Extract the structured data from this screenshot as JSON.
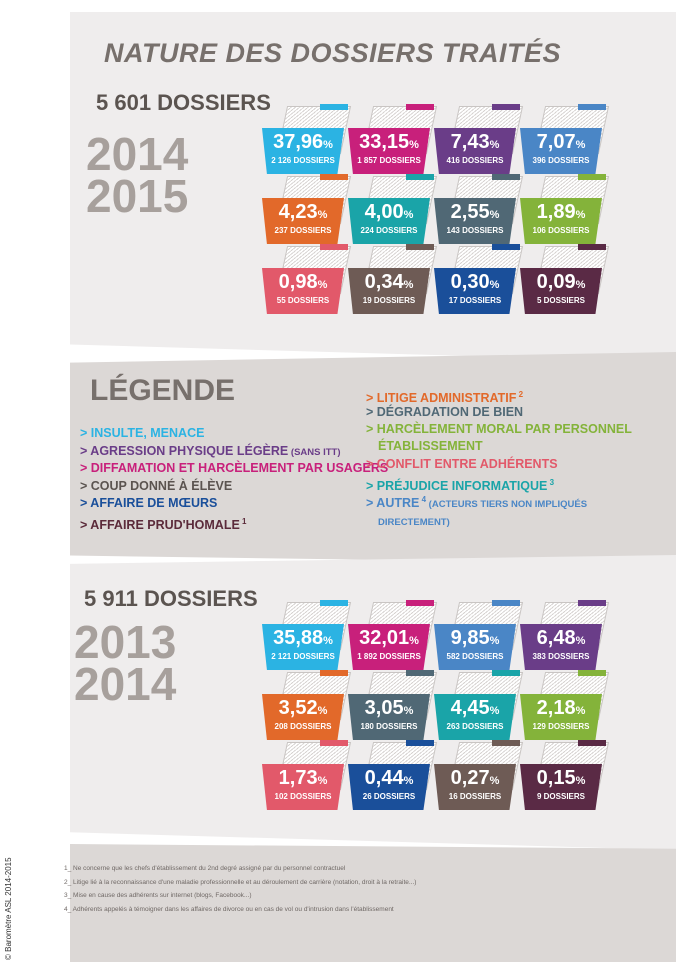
{
  "title": "NATURE DES DOSSIERS TRAITÉS",
  "section1": {
    "count": "5 601 DOSSIERS",
    "year_a": "2014",
    "year_b": "2015",
    "folders": [
      {
        "pct": "37,96",
        "num": "2 126 DOSSIERS",
        "color": "#2bb3e3"
      },
      {
        "pct": "33,15",
        "num": "1 857 DOSSIERS",
        "color": "#c8207b"
      },
      {
        "pct": "7,43",
        "num": "416 DOSSIERS",
        "color": "#6a3d88"
      },
      {
        "pct": "7,07",
        "num": "396 DOSSIERS",
        "color": "#4a86c6"
      },
      {
        "pct": "4,23",
        "num": "237 DOSSIERS",
        "color": "#e2692a"
      },
      {
        "pct": "4,00",
        "num": "224 DOSSIERS",
        "color": "#1aa4a8"
      },
      {
        "pct": "2,55",
        "num": "143 DOSSIERS",
        "color": "#506875"
      },
      {
        "pct": "1,89",
        "num": "106 DOSSIERS",
        "color": "#84b33a"
      },
      {
        "pct": "0,98",
        "num": "55 DOSSIERS",
        "color": "#e2596a"
      },
      {
        "pct": "0,34",
        "num": "19 DOSSIERS",
        "color": "#6e5b55"
      },
      {
        "pct": "0,30",
        "num": "17 DOSSIERS",
        "color": "#1a4f9a"
      },
      {
        "pct": "0,09",
        "num": "5 DOSSIERS",
        "color": "#5a2a45"
      }
    ]
  },
  "legend": {
    "title": "LÉGENDE",
    "left": [
      {
        "text": "> INSULTE, MENACE",
        "color": "#2bb3e3"
      },
      {
        "text": "> AGRESSION PHYSIQUE LÉGÈRE",
        "extra": " (SANS ITT)",
        "color": "#6a3d88"
      },
      {
        "text": "> DIFFAMATION ET HARCÈLEMENT PAR USAGERS",
        "color": "#c8207b"
      },
      {
        "text": "> COUP DONNÉ À ÉLÈVE",
        "color": "#5b5450"
      },
      {
        "text": "> AFFAIRE DE MŒURS",
        "color": "#1a4f9a"
      },
      {
        "text": "> AFFAIRE PRUD'HOMALE",
        "sup": "1",
        "color": "#5b2a3a"
      }
    ],
    "right": [
      {
        "text": "> LITIGE ADMINISTRATIF",
        "sup": "2",
        "color": "#e2692a"
      },
      {
        "text": "> DÉGRADATION DE BIEN",
        "color": "#506875"
      },
      {
        "text": "> HARCÈLEMENT MORAL PAR  PERSONNEL",
        "line2": "ÉTABLISSEMENT",
        "color": "#84b33a"
      },
      {
        "text": "> CONFLIT ENTRE ADHÉRENTS",
        "color": "#e2596a"
      },
      {
        "text": "> PRÉJUDICE INFORMATIQUE",
        "sup": "3",
        "color": "#1aa4a8"
      },
      {
        "text": "> AUTRE",
        "sup": "4",
        "extra": " (ACTEURS TIERS NON IMPLIQUÉS",
        "line2": "DIRECTEMENT)",
        "color": "#4a86c6"
      }
    ]
  },
  "section2": {
    "count": "5 911 DOSSIERS",
    "year_a": "2013",
    "year_b": "2014",
    "folders": [
      {
        "pct": "35,88",
        "num": "2 121 DOSSIERS",
        "color": "#2bb3e3"
      },
      {
        "pct": "32,01",
        "num": "1 892 DOSSIERS",
        "color": "#c8207b"
      },
      {
        "pct": "9,85",
        "num": "582 DOSSIERS",
        "color": "#4a86c6"
      },
      {
        "pct": "6,48",
        "num": "383 DOSSIERS",
        "color": "#6a3d88"
      },
      {
        "pct": "3,52",
        "num": "208 DOSSIERS",
        "color": "#e2692a"
      },
      {
        "pct": "3,05",
        "num": "180 DOSSIERS",
        "color": "#506875"
      },
      {
        "pct": "4,45",
        "num": "263 DOSSIERS",
        "color": "#1aa4a8"
      },
      {
        "pct": "2,18",
        "num": "129 DOSSIERS",
        "color": "#84b33a"
      },
      {
        "pct": "1,73",
        "num": "102 DOSSIERS",
        "color": "#e2596a"
      },
      {
        "pct": "0,44",
        "num": "26 DOSSIERS",
        "color": "#1a4f9a"
      },
      {
        "pct": "0,27",
        "num": "16 DOSSIERS",
        "color": "#6e5b55"
      },
      {
        "pct": "0,15",
        "num": "9 DOSSIERS",
        "color": "#5a2a45"
      }
    ]
  },
  "notes": [
    "1_ Ne concerne que les chefs d'établissement du 2nd degré assigné par du personnel contractuel",
    "2_ Litige lié à la reconnaissance d'une maladie professionnelle et au déroulement de carrière (notation, droit à la retraite...)",
    "3_ Mise en cause des adhérents sur internet (blogs, Facebook...)",
    "4_ Adhérents appelés à témoigner dans les affaires de divorce ou en cas de vol ou d'intrusion dans l'établissement"
  ],
  "copyright": "© Baromètre ASL 2014-2015"
}
